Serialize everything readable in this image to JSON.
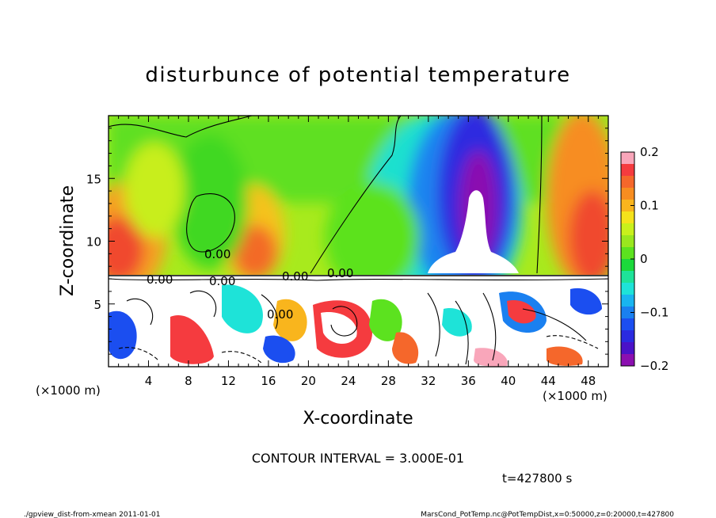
{
  "chart_data": {
    "type": "heatmap",
    "title": "disturbunce of potential temperature",
    "xlabel": "X-coordinate",
    "ylabel": "Z-coordinate",
    "x_unit_left": "(×1000 m)",
    "x_unit_right": "(×1000 m)",
    "xlim": [
      0,
      50
    ],
    "ylim": [
      0,
      20
    ],
    "x_ticks": [
      "4",
      "8",
      "12",
      "16",
      "20",
      "24",
      "28",
      "32",
      "36",
      "40",
      "44",
      "48"
    ],
    "y_ticks": [
      "5",
      "10",
      "15"
    ],
    "colorbar": {
      "min": -0.2,
      "max": 0.2,
      "ticks": [
        "0.2",
        "0.1",
        "0",
        "−0.1",
        "−0.2"
      ],
      "colors": [
        "#f9a6ba",
        "#f53b3f",
        "#f5672b",
        "#f78d20",
        "#f9b51d",
        "#f5e21b",
        "#c9f01c",
        "#9ae71e",
        "#5ce21f",
        "#1bd93b",
        "#1ee399",
        "#1ee3d8",
        "#19b5f0",
        "#1a80f0",
        "#1b4ef0",
        "#2a2ae0",
        "#4a12c8",
        "#8b0fb0"
      ]
    },
    "contour_labels": [
      "0.00",
      "0.00",
      "0.00",
      "0.00",
      "0.00",
      "0.00"
    ],
    "annotation": "CONTOUR INTERVAL = 3.000E-01",
    "time": "t=427800 s"
  },
  "footer": {
    "left": "./gpview_dist-from-xmean  2011-01-01",
    "right": "MarsCond_PotTemp.nc@PotTempDist,x=0:50000,z=0:20000,t=427800"
  }
}
